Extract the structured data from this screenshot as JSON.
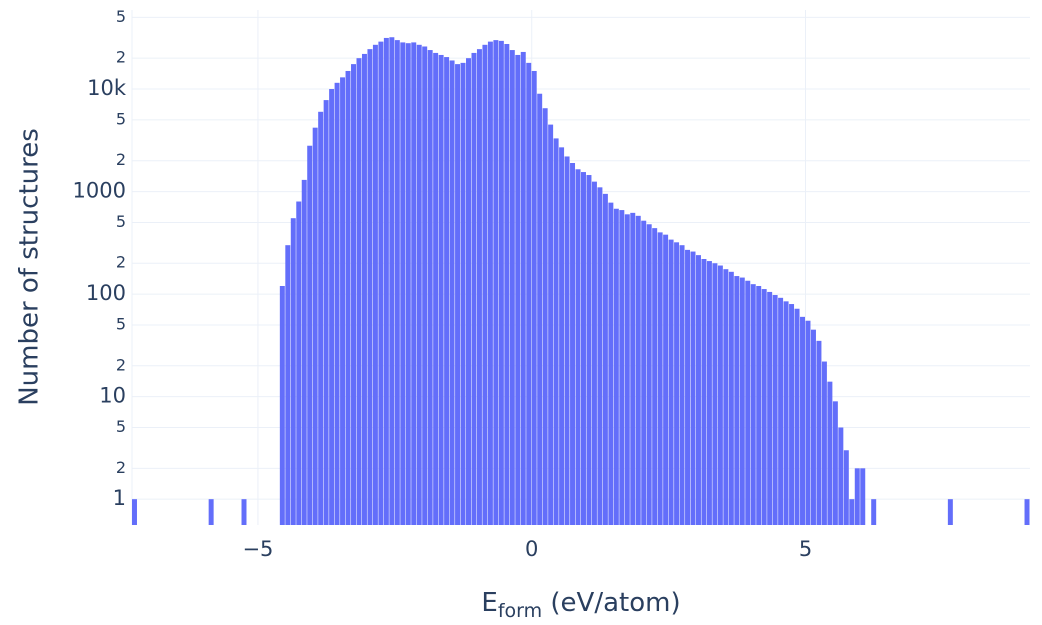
{
  "chart_data": {
    "type": "histogram",
    "x_label": {
      "main": "E",
      "sub": "form",
      "rest": " (eV/atom)"
    },
    "y_label": "Number of structures",
    "color": "#636efa",
    "log_y": true,
    "grid": true,
    "xlim": [
      -7.3,
      9.1
    ],
    "xticks": [
      {
        "value": -5,
        "label": "−5"
      },
      0,
      5
    ],
    "ylim": [
      0.56,
      59000
    ],
    "yticks": [
      1,
      2,
      5,
      10,
      {
        "value": 20,
        "label": "2"
      },
      {
        "value": 50,
        "label": "5"
      },
      100,
      {
        "value": 200,
        "label": "2"
      },
      {
        "value": 500,
        "label": "5"
      },
      1000,
      {
        "value": 2000,
        "label": "2"
      },
      {
        "value": 5000,
        "label": "5"
      },
      {
        "value": 10000,
        "label": "10k"
      },
      {
        "value": 20000,
        "label": "2"
      },
      {
        "value": 50000,
        "label": "5"
      }
    ],
    "bins": [
      -7.3,
      -7.2,
      -7.1,
      -7.0,
      -6.9,
      -6.8,
      -6.7,
      -6.6,
      -6.5,
      -6.4,
      -6.3,
      -6.2,
      -6.1,
      -6.0,
      -5.9,
      -5.8,
      -5.7,
      -5.6,
      -5.5,
      -5.4,
      -5.3,
      -5.2,
      -5.1,
      -5.0,
      -4.9,
      -4.8,
      -4.7,
      -4.6,
      -4.5,
      -4.4,
      -4.3,
      -4.2,
      -4.1,
      -4.0,
      -3.9,
      -3.8,
      -3.7,
      -3.6,
      -3.5,
      -3.4,
      -3.3,
      -3.2,
      -3.1,
      -3.0,
      -2.9,
      -2.8,
      -2.7,
      -2.6,
      -2.5,
      -2.4,
      -2.3,
      -2.2,
      -2.1,
      -2.0,
      -1.9,
      -1.8,
      -1.7,
      -1.6,
      -1.5,
      -1.4,
      -1.3,
      -1.2,
      -1.1,
      -1.0,
      -0.9,
      -0.8,
      -0.7,
      -0.6,
      -0.5,
      -0.4,
      -0.3,
      -0.2,
      -0.1,
      0.0,
      0.1,
      0.2,
      0.3,
      0.4,
      0.5,
      0.6,
      0.7,
      0.8,
      0.9,
      1.0,
      1.1,
      1.2,
      1.3,
      1.4,
      1.5,
      1.6,
      1.7,
      1.8,
      1.9,
      2.0,
      2.1,
      2.2,
      2.3,
      2.4,
      2.5,
      2.6,
      2.7,
      2.8,
      2.9,
      3.0,
      3.1,
      3.2,
      3.3,
      3.4,
      3.5,
      3.6,
      3.7,
      3.8,
      3.9,
      4.0,
      4.1,
      4.2,
      4.3,
      4.4,
      4.5,
      4.6,
      4.7,
      4.8,
      4.9,
      5.0,
      5.1,
      5.2,
      5.3,
      5.4,
      5.5,
      5.6,
      5.7,
      5.8,
      5.9,
      6.0,
      6.1,
      6.2,
      6.3,
      6.4,
      6.5,
      6.6,
      6.7,
      6.8,
      6.9,
      7.0,
      7.1,
      7.2,
      7.3,
      7.4,
      7.5,
      7.6,
      7.7,
      7.8,
      7.9,
      8.0,
      8.1,
      8.2,
      8.3,
      8.4,
      8.5,
      8.6,
      8.7,
      8.8,
      8.9,
      9.0,
      9.1
    ],
    "counts": [
      1,
      0,
      0,
      0,
      0,
      0,
      0,
      0,
      0,
      0,
      0,
      0,
      0,
      0,
      1,
      0,
      0,
      0,
      0,
      0,
      1,
      0,
      0,
      0,
      0,
      0,
      0,
      120,
      300,
      550,
      800,
      1300,
      2800,
      4200,
      6000,
      7800,
      10000,
      11500,
      13000,
      15000,
      17500,
      20000,
      22000,
      24500,
      27000,
      29000,
      31500,
      32000,
      30000,
      28500,
      28000,
      28500,
      27000,
      26000,
      24000,
      22500,
      21500,
      20500,
      19000,
      17500,
      18000,
      20000,
      22500,
      24500,
      27000,
      29000,
      30000,
      29500,
      27500,
      24000,
      21500,
      23000,
      18000,
      15000,
      9000,
      6500,
      4500,
      3300,
      2700,
      2200,
      1900,
      1650,
      1550,
      1450,
      1250,
      1100,
      950,
      780,
      680,
      660,
      600,
      620,
      580,
      520,
      480,
      440,
      400,
      380,
      340,
      320,
      300,
      270,
      260,
      240,
      220,
      210,
      200,
      190,
      175,
      165,
      150,
      145,
      135,
      125,
      120,
      112,
      105,
      98,
      92,
      85,
      80,
      72,
      60,
      55,
      45,
      35,
      22,
      14,
      9,
      5,
      3,
      1,
      2,
      2,
      0,
      1,
      0,
      0,
      0,
      0,
      0,
      0,
      0,
      0,
      0,
      0,
      0,
      0,
      0,
      1,
      0,
      0,
      0,
      0,
      0,
      0,
      0,
      0,
      0,
      0,
      0,
      0,
      0,
      1
    ]
  }
}
